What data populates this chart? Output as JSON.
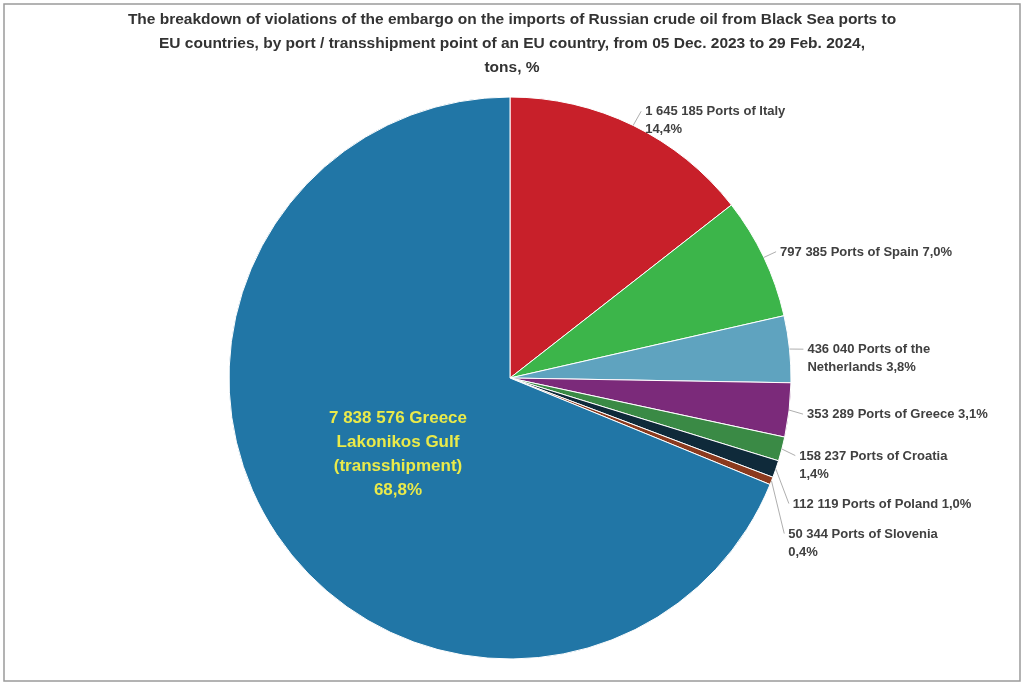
{
  "chart_data": {
    "type": "pie",
    "title": "The breakdown of violations of the embargo on the imports of Russian crude oil from Black Sea ports to EU countries, by port / transshipment point of an EU country,  from 05 Dec. 2023 to 29 Feb. 2024, tons, %",
    "categories": [
      "Ports of Italy",
      "Ports of Spain",
      "Ports of the Netherlands",
      "Ports of Greece",
      "Ports of Croatia",
      "Ports of Poland",
      "Ports of Slovenia",
      "Greece Lakonikos Gulf (transshipment)"
    ],
    "values": [
      1645185,
      797385,
      436040,
      353289,
      158237,
      112119,
      50344,
      7838576
    ],
    "value_labels": [
      "1 645 185",
      "797 385",
      "436 040",
      "353 289",
      "158 237",
      "112 119",
      "50 344",
      "7 838 576"
    ],
    "annotations": [
      "14,4%",
      "7,0%",
      "3,8%",
      "3,1%",
      "1,4%",
      "1,0%",
      "0,4%",
      "68,8%"
    ],
    "colors": [
      "#c8202a",
      "#3cb54a",
      "#5fa3bf",
      "#7b2a7a",
      "#3a8a45",
      "#0f2a3a",
      "#8b3a1e",
      "#2176a6"
    ]
  }
}
